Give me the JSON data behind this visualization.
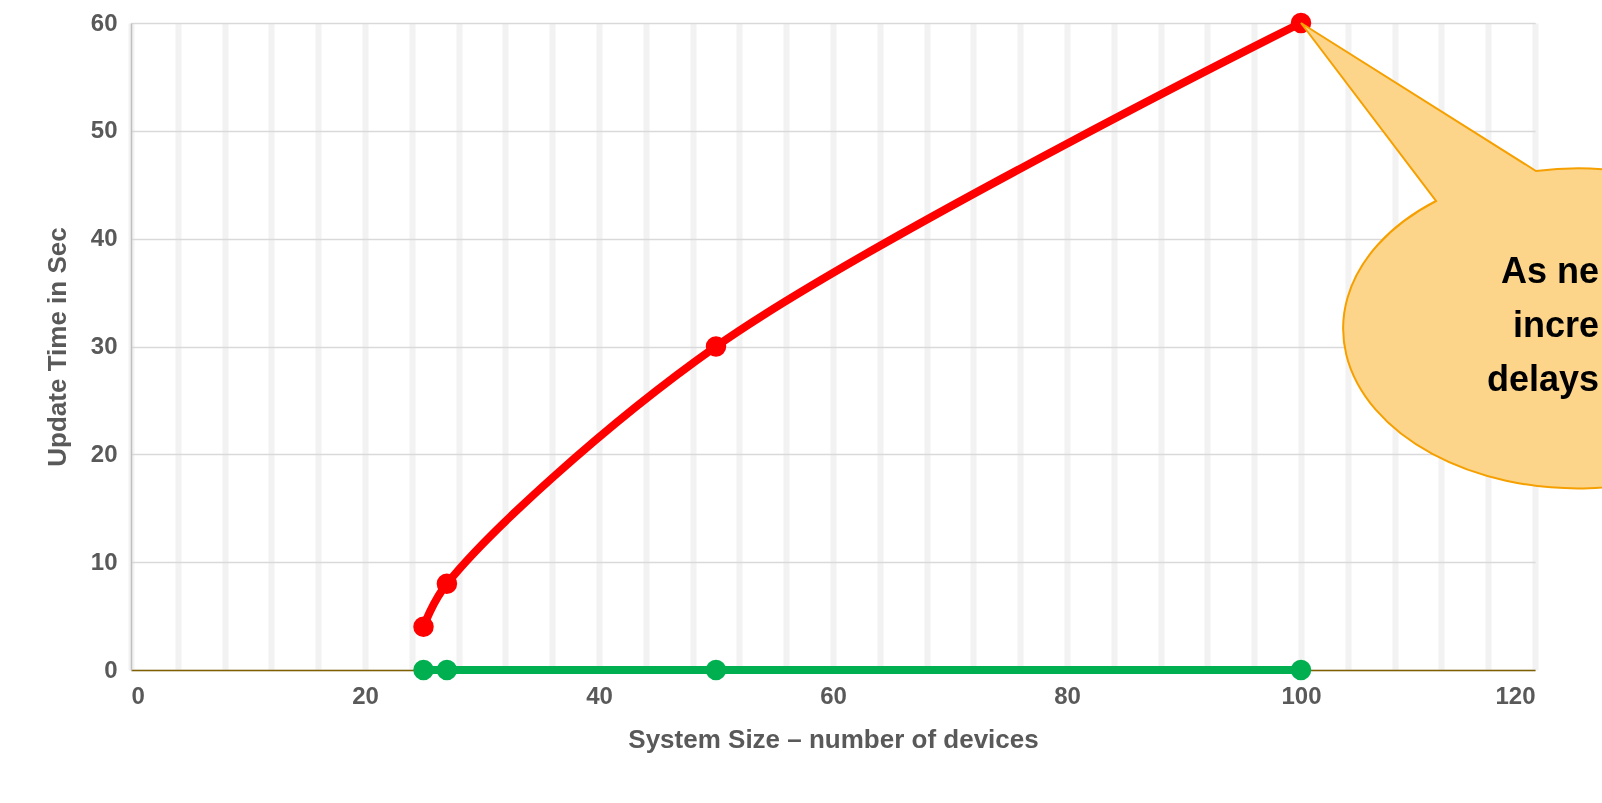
{
  "chart_data": {
    "type": "line",
    "xlabel": "System Size – number of devices",
    "ylabel": "Update Time in Sec",
    "series": [
      {
        "color": "#ff0000",
        "x": [
          25,
          27,
          50,
          100
        ],
        "values": [
          4,
          8,
          30,
          60
        ]
      },
      {
        "color": "#00b050",
        "x": [
          25,
          27,
          50,
          100
        ],
        "values": [
          0,
          0,
          0,
          0
        ]
      }
    ],
    "xlim": [
      0,
      120
    ],
    "xticks": [
      0,
      {
        "value": 4,
        "label": null
      },
      {
        "value": 8,
        "label": null
      },
      {
        "value": 12,
        "label": null
      },
      {
        "value": 16,
        "label": null
      },
      20,
      {
        "value": 24,
        "label": null
      },
      {
        "value": 28,
        "label": null
      },
      {
        "value": 32,
        "label": null
      },
      {
        "value": 36,
        "label": null
      },
      40,
      {
        "value": 44,
        "label": null
      },
      {
        "value": 48,
        "label": null
      },
      {
        "value": 52,
        "label": null
      },
      {
        "value": 56,
        "label": null
      },
      60,
      {
        "value": 64,
        "label": null
      },
      {
        "value": 68,
        "label": null
      },
      {
        "value": 72,
        "label": null
      },
      {
        "value": 76,
        "label": null
      },
      80,
      {
        "value": 84,
        "label": null
      },
      {
        "value": 88,
        "label": null
      },
      {
        "value": 92,
        "label": null
      },
      {
        "value": 96,
        "label": null
      },
      100,
      {
        "value": 104,
        "label": null
      },
      {
        "value": 108,
        "label": null
      },
      {
        "value": 112,
        "label": null
      },
      {
        "value": 116,
        "label": null
      },
      120
    ],
    "ylim": [
      0,
      60
    ],
    "yticks": [
      0,
      10,
      20,
      30,
      40,
      50,
      60
    ],
    "grid": true,
    "marker": "circle",
    "line_style": "solid",
    "annotations": [
      "As ne\nincre\ndelays"
    ]
  }
}
